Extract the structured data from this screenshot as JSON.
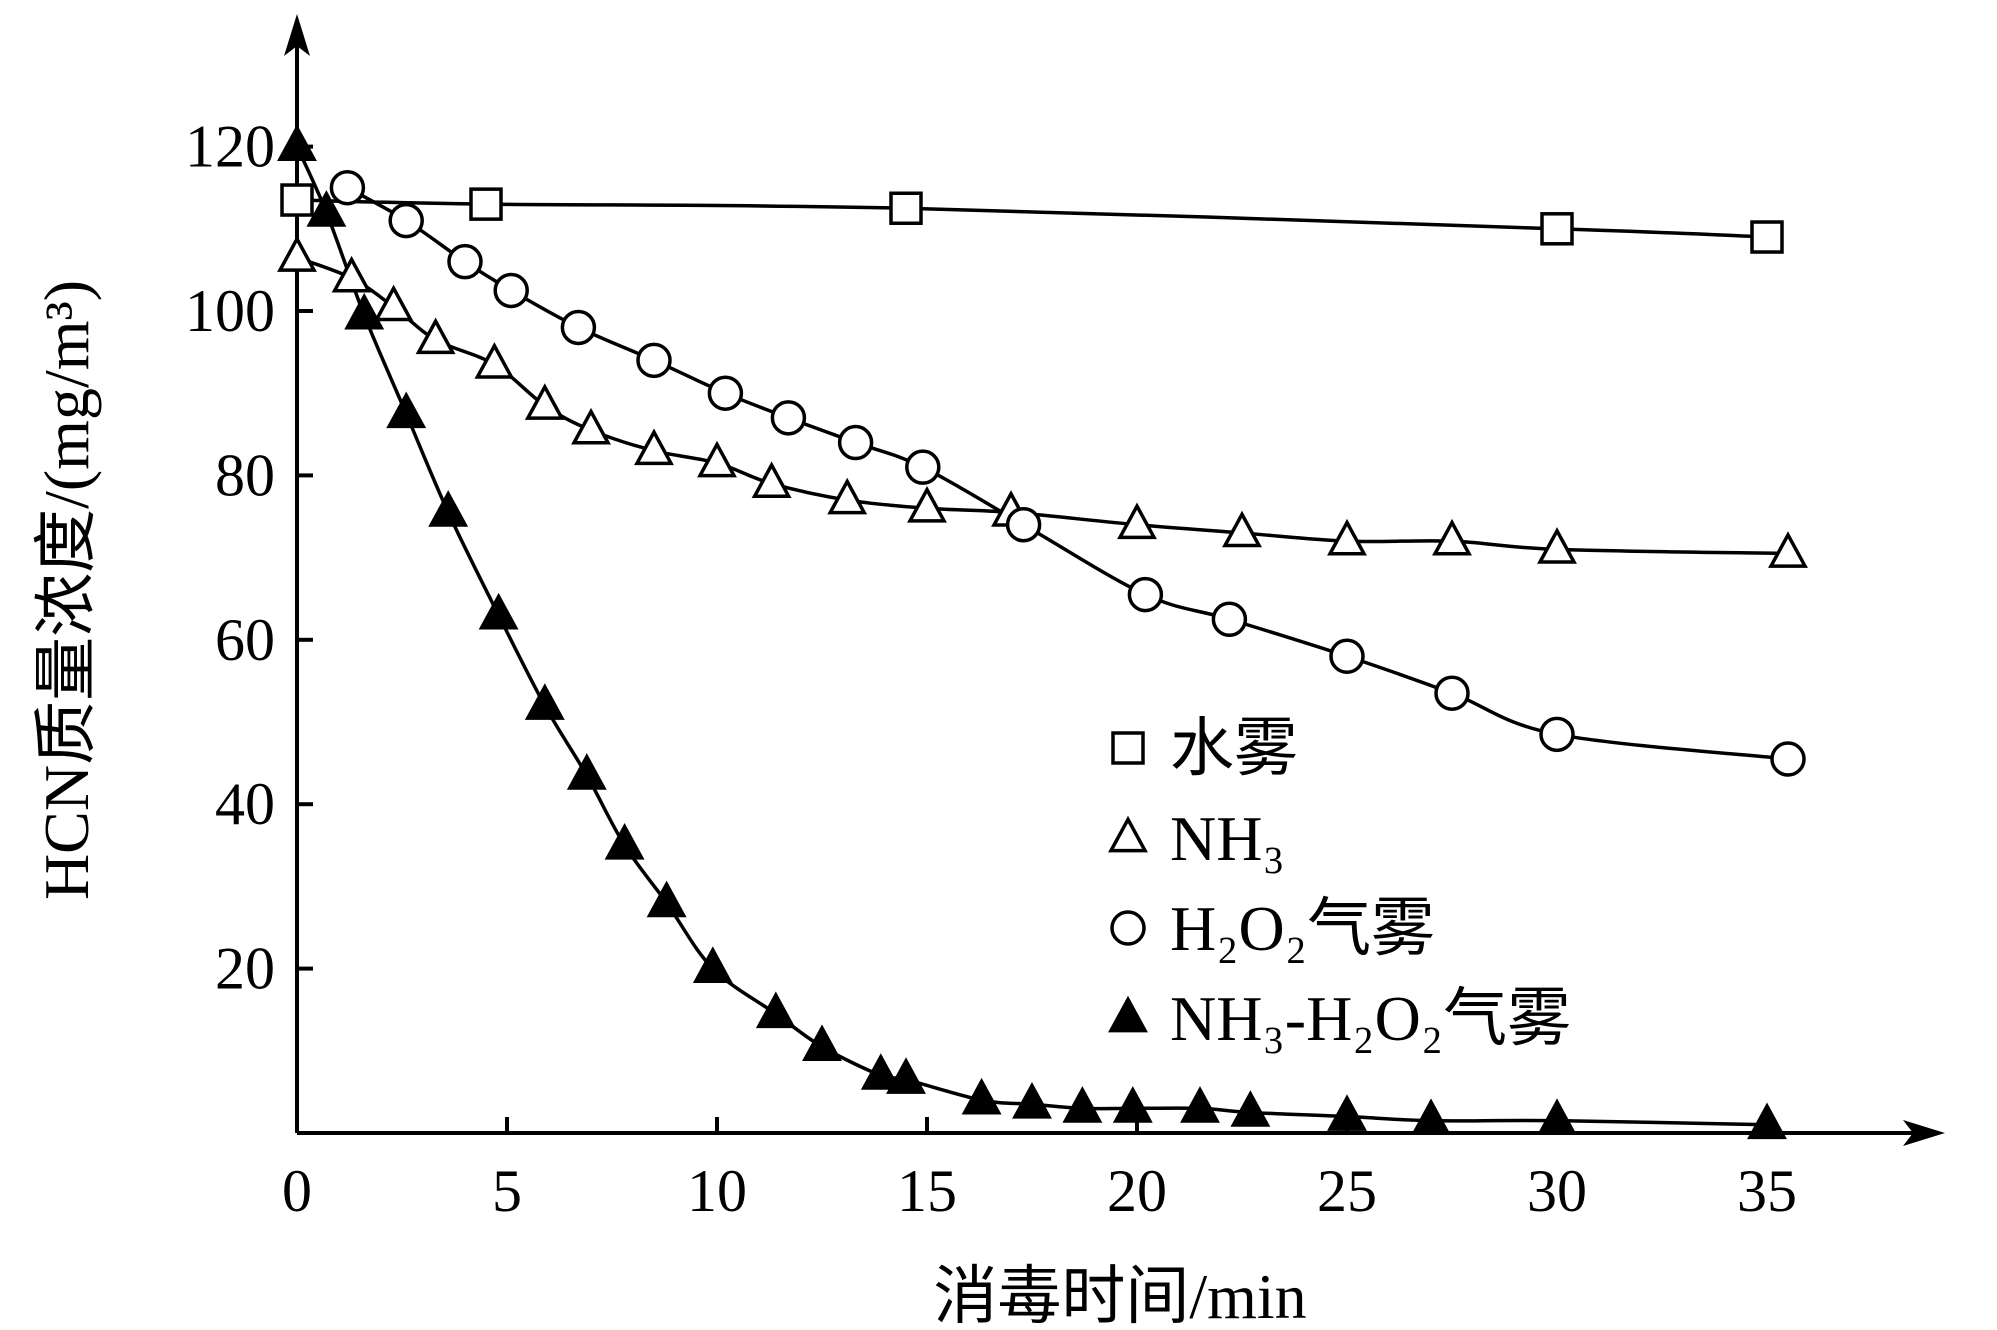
{
  "chart_data": {
    "type": "line",
    "xlabel": "消毒时间/min",
    "ylabel": "HCN质量浓度/(mg/m³)",
    "xlim": [
      0,
      37
    ],
    "ylim": [
      0,
      120
    ],
    "xticks": [
      0,
      5,
      10,
      15,
      20,
      25,
      30,
      35
    ],
    "yticks": [
      20,
      40,
      60,
      80,
      100,
      120
    ],
    "legend_position": "center-right",
    "grid": false,
    "series": [
      {
        "name": "水雾",
        "marker": "square-open",
        "x": [
          0,
          4.5,
          14.5,
          30,
          35
        ],
        "y": [
          113.5,
          113,
          112.5,
          110,
          109
        ]
      },
      {
        "name": "NH₃",
        "marker": "triangle-open",
        "x": [
          0,
          1.3,
          2.3,
          3.3,
          4.7,
          5.9,
          7,
          8.5,
          10,
          11.3,
          13.1,
          15,
          17,
          20,
          22.5,
          25,
          27.5,
          30,
          35.5
        ],
        "y": [
          106.5,
          104,
          100.5,
          96.5,
          93.5,
          88.5,
          85.5,
          83,
          81.5,
          79,
          77,
          76,
          75.5,
          74,
          73,
          72,
          72,
          71,
          70.5
        ]
      },
      {
        "name": "H₂O₂气雾",
        "marker": "circle-open",
        "x": [
          1.2,
          2.6,
          4,
          5.1,
          6.7,
          8.5,
          10.2,
          11.7,
          13.3,
          14.9,
          17.3,
          20.2,
          22.2,
          25,
          27.5,
          30,
          35.5
        ],
        "y": [
          115,
          111,
          106,
          102.5,
          98,
          94,
          90,
          87,
          84,
          81,
          74,
          65.5,
          62.5,
          58,
          53.5,
          48.5,
          45.5
        ]
      },
      {
        "name": "NH₃-H₂O₂气雾",
        "marker": "triangle-filled",
        "x": [
          0,
          0.7,
          1.6,
          2.6,
          3.6,
          4.8,
          5.9,
          6.9,
          7.8,
          8.8,
          9.9,
          11.4,
          12.5,
          13.9,
          14.5,
          16.3,
          17.5,
          18.7,
          19.9,
          21.5,
          22.7,
          25,
          27,
          30,
          35
        ],
        "y": [
          120,
          112,
          99.5,
          87.5,
          75.5,
          63,
          52,
          43.5,
          35,
          28,
          20,
          14.5,
          10.5,
          7,
          6.5,
          4,
          3.5,
          3,
          3,
          3,
          2.5,
          2,
          1.5,
          1.5,
          1
        ]
      }
    ]
  }
}
